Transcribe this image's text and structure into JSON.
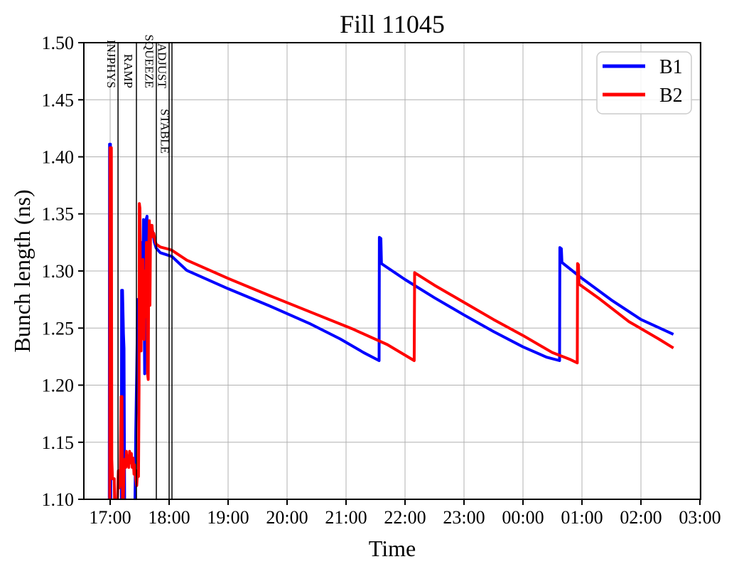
{
  "chart_data": {
    "type": "line",
    "title": "Fill 11045",
    "xlabel": "Time",
    "ylabel": "Bunch length (ns)",
    "grid": true,
    "legend_position": "upper right",
    "x_domain_hours": [
      16.554,
      27.012
    ],
    "ylim": [
      1.1,
      1.5
    ],
    "x_ticks": [
      {
        "hour": 17,
        "label": "17:00"
      },
      {
        "hour": 18,
        "label": "18:00"
      },
      {
        "hour": 19,
        "label": "19:00"
      },
      {
        "hour": 20,
        "label": "20:00"
      },
      {
        "hour": 21,
        "label": "21:00"
      },
      {
        "hour": 22,
        "label": "22:00"
      },
      {
        "hour": 23,
        "label": "23:00"
      },
      {
        "hour": 24,
        "label": "00:00"
      },
      {
        "hour": 25,
        "label": "01:00"
      },
      {
        "hour": 26,
        "label": "02:00"
      },
      {
        "hour": 27,
        "label": "03:00"
      }
    ],
    "y_ticks": [
      {
        "value": 1.1,
        "label": "1.10"
      },
      {
        "value": 1.15,
        "label": "1.15"
      },
      {
        "value": 1.2,
        "label": "1.20"
      },
      {
        "value": 1.25,
        "label": "1.25"
      },
      {
        "value": 1.3,
        "label": "1.30"
      },
      {
        "value": 1.35,
        "label": "1.35"
      },
      {
        "value": 1.4,
        "label": "1.40"
      },
      {
        "value": 1.45,
        "label": "1.45"
      },
      {
        "value": 1.5,
        "label": "1.50"
      }
    ],
    "beam_modes": [
      {
        "label": "INJPHYS",
        "line_hour": 17.133,
        "label_center_hour": 17.024,
        "low": false
      },
      {
        "label": "RAMP",
        "line_hour": 17.446,
        "label_center_hour": 17.313,
        "low": false
      },
      {
        "label": "SQUEEZE",
        "line_hour": 17.783,
        "label_center_hour": 17.669,
        "low": false
      },
      {
        "label": "ADJUST",
        "line_hour": 18.0,
        "label_center_hour": 17.886,
        "low": false
      },
      {
        "label": "STABLE",
        "line_hour": 18.048,
        "label_center_hour": 17.934,
        "low": true
      }
    ],
    "series": [
      {
        "name": "B1",
        "color": "#0000ff",
        "points": [
          [
            16.985,
            1.095
          ],
          [
            16.99,
            1.411
          ],
          [
            17.005,
            1.411
          ],
          [
            17.012,
            1.095
          ],
          [
            17.19,
            1.095
          ],
          [
            17.195,
            1.283
          ],
          [
            17.21,
            1.283
          ],
          [
            17.225,
            1.245
          ],
          [
            17.235,
            1.232
          ],
          [
            17.245,
            1.095
          ],
          [
            17.42,
            1.095
          ],
          [
            17.435,
            1.16
          ],
          [
            17.45,
            1.21
          ],
          [
            17.46,
            1.245
          ],
          [
            17.465,
            1.275
          ],
          [
            17.475,
            1.24
          ],
          [
            17.485,
            1.272
          ],
          [
            17.5,
            1.255
          ],
          [
            17.51,
            1.3
          ],
          [
            17.525,
            1.26
          ],
          [
            17.54,
            1.325
          ],
          [
            17.55,
            1.27
          ],
          [
            17.565,
            1.345
          ],
          [
            17.575,
            1.29
          ],
          [
            17.585,
            1.21
          ],
          [
            17.595,
            1.26
          ],
          [
            17.61,
            1.345
          ],
          [
            17.625,
            1.348
          ],
          [
            17.64,
            1.31
          ],
          [
            17.655,
            1.342
          ],
          [
            17.67,
            1.3
          ],
          [
            17.685,
            1.338
          ],
          [
            17.7,
            1.33
          ],
          [
            17.72,
            1.335
          ],
          [
            17.75,
            1.325
          ],
          [
            17.78,
            1.32
          ],
          [
            17.85,
            1.316
          ],
          [
            18.0,
            1.3135
          ],
          [
            18.05,
            1.3125
          ],
          [
            18.3,
            1.3005
          ],
          [
            19.0,
            1.2845
          ],
          [
            19.7,
            1.2695
          ],
          [
            20.4,
            1.2535
          ],
          [
            20.9,
            1.2405
          ],
          [
            21.3,
            1.2285
          ],
          [
            21.56,
            1.2215
          ],
          [
            21.565,
            1.3295
          ],
          [
            21.59,
            1.3285
          ],
          [
            21.6,
            1.3065
          ],
          [
            22.0,
            1.2925
          ],
          [
            22.5,
            1.2765
          ],
          [
            23.0,
            1.2615
          ],
          [
            23.5,
            1.247
          ],
          [
            24.0,
            1.2335
          ],
          [
            24.4,
            1.2245
          ],
          [
            24.62,
            1.2215
          ],
          [
            24.625,
            1.3205
          ],
          [
            24.65,
            1.3195
          ],
          [
            24.66,
            1.3075
          ],
          [
            25.0,
            1.2935
          ],
          [
            25.5,
            1.2745
          ],
          [
            26.0,
            1.2575
          ],
          [
            26.55,
            1.2445
          ]
        ]
      },
      {
        "name": "B2",
        "color": "#ff0000",
        "points": [
          [
            16.993,
            1.095
          ],
          [
            16.998,
            1.408
          ],
          [
            17.02,
            1.408
          ],
          [
            17.028,
            1.135
          ],
          [
            17.04,
            1.118
          ],
          [
            17.07,
            1.118
          ],
          [
            17.075,
            1.1
          ],
          [
            17.09,
            1.095
          ],
          [
            17.1,
            1.1
          ],
          [
            17.12,
            1.095
          ],
          [
            17.14,
            1.125
          ],
          [
            17.155,
            1.11
          ],
          [
            17.17,
            1.115
          ],
          [
            17.185,
            1.19
          ],
          [
            17.2,
            1.19
          ],
          [
            17.21,
            1.1
          ],
          [
            17.22,
            1.095
          ],
          [
            17.235,
            1.125
          ],
          [
            17.25,
            1.135
          ],
          [
            17.265,
            1.128
          ],
          [
            17.275,
            1.142
          ],
          [
            17.285,
            1.13
          ],
          [
            17.3,
            1.138
          ],
          [
            17.315,
            1.128
          ],
          [
            17.33,
            1.142
          ],
          [
            17.345,
            1.132
          ],
          [
            17.36,
            1.14
          ],
          [
            17.375,
            1.128
          ],
          [
            17.39,
            1.136
          ],
          [
            17.405,
            1.122
          ],
          [
            17.42,
            1.13
          ],
          [
            17.435,
            1.118
          ],
          [
            17.45,
            1.112
          ],
          [
            17.465,
            1.125
          ],
          [
            17.48,
            1.12
          ],
          [
            17.49,
            1.2
          ],
          [
            17.495,
            1.359
          ],
          [
            17.505,
            1.355
          ],
          [
            17.515,
            1.27
          ],
          [
            17.525,
            1.23
          ],
          [
            17.535,
            1.3
          ],
          [
            17.545,
            1.26
          ],
          [
            17.555,
            1.31
          ],
          [
            17.565,
            1.255
          ],
          [
            17.575,
            1.24
          ],
          [
            17.585,
            1.3
          ],
          [
            17.6,
            1.26
          ],
          [
            17.615,
            1.325
          ],
          [
            17.625,
            1.29
          ],
          [
            17.635,
            1.21
          ],
          [
            17.645,
            1.205
          ],
          [
            17.655,
            1.32
          ],
          [
            17.665,
            1.344
          ],
          [
            17.675,
            1.27
          ],
          [
            17.685,
            1.34
          ],
          [
            17.695,
            1.335
          ],
          [
            17.71,
            1.34
          ],
          [
            17.725,
            1.33
          ],
          [
            17.74,
            1.333
          ],
          [
            17.76,
            1.327
          ],
          [
            17.78,
            1.3235
          ],
          [
            17.85,
            1.321
          ],
          [
            18.0,
            1.319
          ],
          [
            18.05,
            1.318
          ],
          [
            18.3,
            1.3095
          ],
          [
            19.0,
            1.2935
          ],
          [
            19.7,
            1.2785
          ],
          [
            20.4,
            1.264
          ],
          [
            21.1,
            1.2495
          ],
          [
            21.7,
            1.2355
          ],
          [
            22.155,
            1.2215
          ],
          [
            22.162,
            1.2985
          ],
          [
            22.5,
            1.2875
          ],
          [
            23.0,
            1.2725
          ],
          [
            23.5,
            1.2575
          ],
          [
            24.0,
            1.2435
          ],
          [
            24.5,
            1.2285
          ],
          [
            24.8,
            1.2225
          ],
          [
            24.92,
            1.2195
          ],
          [
            24.925,
            1.3065
          ],
          [
            24.94,
            1.3055
          ],
          [
            24.95,
            1.2885
          ],
          [
            25.3,
            1.2755
          ],
          [
            25.8,
            1.2555
          ],
          [
            26.3,
            1.2405
          ],
          [
            26.55,
            1.2325
          ]
        ]
      }
    ],
    "colors": {
      "b1": "#0000ff",
      "b2": "#ff0000",
      "grid": "#b0b0b0",
      "axes": "#000000"
    }
  }
}
